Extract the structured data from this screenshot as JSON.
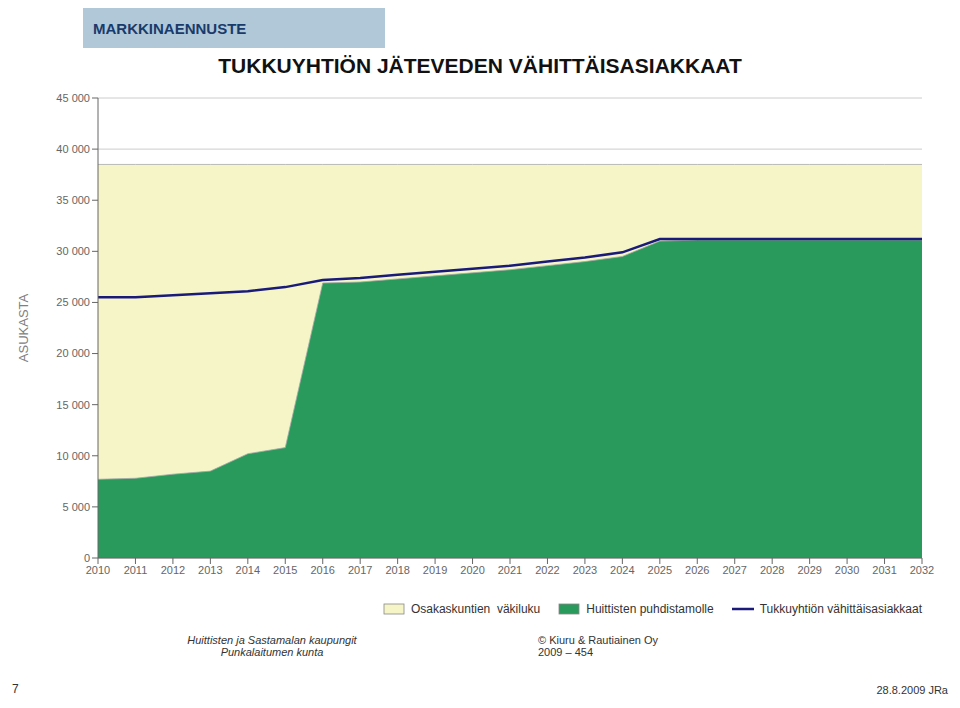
{
  "chart_data": {
    "type": "area",
    "title": "TUKKUYHTIÖN JÄTEVEDEN VÄHITTÄISASIAKKAAT",
    "ylabel": "ASUKASTA",
    "x": [
      2010,
      2011,
      2012,
      2013,
      2014,
      2015,
      2016,
      2017,
      2018,
      2019,
      2020,
      2021,
      2022,
      2023,
      2024,
      2025,
      2026,
      2027,
      2028,
      2029,
      2030,
      2031,
      2032
    ],
    "series": [
      {
        "name": "Osakaskuntien  väkiluku",
        "type": "area",
        "color": "#f5f5c8",
        "values": [
          38500,
          38500,
          38500,
          38500,
          38500,
          38500,
          38500,
          38500,
          38500,
          38500,
          38500,
          38500,
          38500,
          38500,
          38500,
          38500,
          38500,
          38500,
          38500,
          38500,
          38500,
          38500,
          38500
        ]
      },
      {
        "name": "Huittisten puhdistamolle",
        "type": "area",
        "color": "#2a9a5c",
        "values": [
          7700,
          7800,
          8200,
          8500,
          10200,
          10800,
          26900,
          27000,
          27300,
          27600,
          27900,
          28200,
          28600,
          29000,
          29500,
          31000,
          31100,
          31100,
          31100,
          31100,
          31100,
          31100,
          31100
        ]
      },
      {
        "name": "Tukkuyhtiön vähittäisasiakkaat",
        "type": "line",
        "color": "#1a1a7a",
        "values": [
          25500,
          25500,
          25700,
          25900,
          26100,
          26500,
          27200,
          27400,
          27700,
          28000,
          28300,
          28600,
          29000,
          29400,
          29900,
          31200,
          31200,
          31200,
          31200,
          31200,
          31200,
          31200,
          31200
        ]
      }
    ],
    "xlim": [
      2010,
      2032
    ],
    "xticks": [
      2010,
      2011,
      2012,
      2013,
      2014,
      2015,
      2016,
      2017,
      2018,
      2019,
      2020,
      2021,
      2022,
      2023,
      2024,
      2025,
      2026,
      2027,
      2028,
      2029,
      2030,
      2031,
      2032
    ],
    "ylim": [
      0,
      45000
    ],
    "yticks": [
      0,
      {
        "value": 5000,
        "label": "5 000"
      },
      {
        "value": 10000,
        "label": "10 000"
      },
      {
        "value": 15000,
        "label": "15 000"
      },
      {
        "value": 20000,
        "label": "20 000"
      },
      {
        "value": 25000,
        "label": "25 000"
      },
      {
        "value": 30000,
        "label": "30 000"
      },
      {
        "value": 35000,
        "label": "35 000"
      },
      {
        "value": 40000,
        "label": "40 000"
      },
      {
        "value": 45000,
        "label": "45 000"
      }
    ],
    "grid": "y",
    "legend": "lower right",
    "annotations": [
      "MARKKINAENNUSTE",
      "Huittisten ja Sastamalan kaupungit\nPunkalaitumen kunta",
      "© Kiuru & Rautiainen Oy\n2009 – 454",
      "7",
      "28.8.2009 JRa"
    ]
  }
}
